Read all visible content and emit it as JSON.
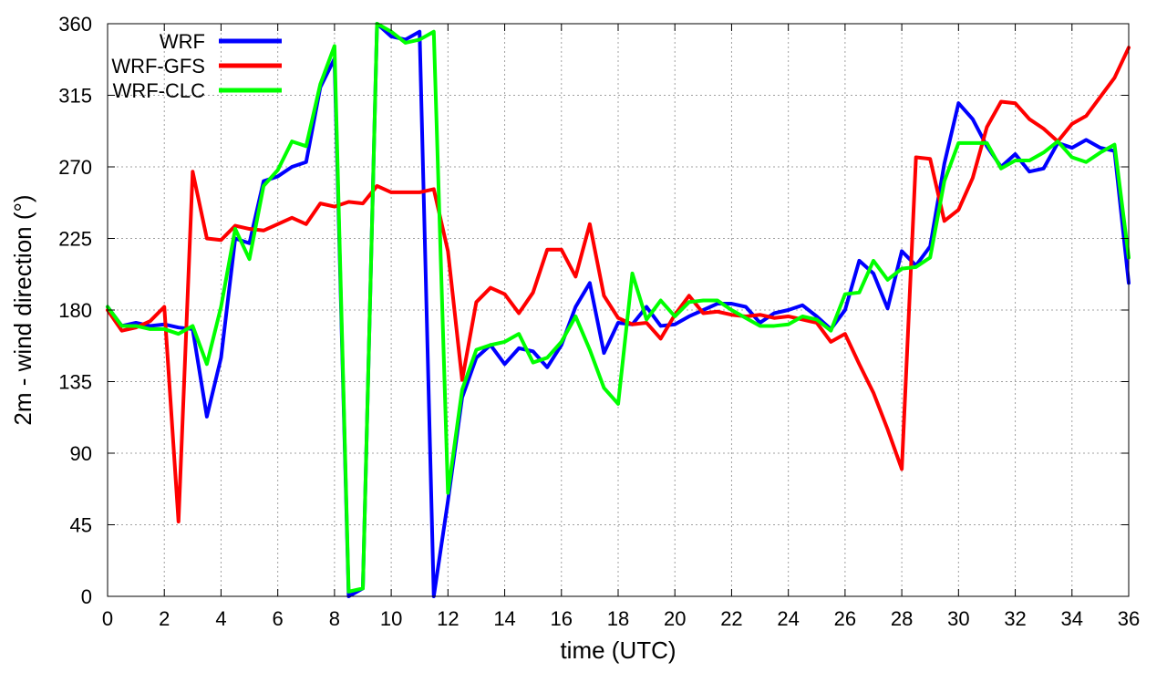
{
  "chart_data": {
    "type": "line",
    "xlabel": "time (UTC)",
    "ylabel": "2m - wind direction (°)",
    "xlim": [
      0,
      36
    ],
    "ylim": [
      0,
      360
    ],
    "xticks": [
      "0",
      "2",
      "4",
      "6",
      "8",
      "10",
      "12",
      "14",
      "16",
      "18",
      "20",
      "22",
      "24",
      "26",
      "28",
      "30",
      "32",
      "34",
      "36"
    ],
    "yticks": [
      "0",
      "45",
      "90",
      "135",
      "180",
      "225",
      "270",
      "315",
      "360"
    ],
    "grid": true,
    "legend_position": "top-left",
    "x": [
      0,
      0.5,
      1,
      1.5,
      2,
      2.5,
      3,
      3.5,
      4,
      4.5,
      5,
      5.5,
      6,
      6.5,
      7,
      7.5,
      8,
      8.5,
      9,
      9.5,
      10,
      10.5,
      11,
      11.5,
      12,
      12.5,
      13,
      13.5,
      14,
      14.5,
      15,
      15.5,
      16,
      16.5,
      17,
      17.5,
      18,
      18.5,
      19,
      19.5,
      20,
      20.5,
      21,
      21.5,
      22,
      22.5,
      23,
      23.5,
      24,
      24.5,
      25,
      25.5,
      26,
      26.5,
      27,
      27.5,
      28,
      28.5,
      29,
      29.5,
      30,
      30.5,
      31,
      31.5,
      32,
      32.5,
      33,
      33.5,
      34,
      34.5,
      35,
      35.5,
      36
    ],
    "series": [
      {
        "name": "WRF",
        "color": "#0000ff",
        "values": [
          182,
          170,
          172,
          170,
          171,
          169,
          168,
          113,
          150,
          225,
          222,
          261,
          264,
          270,
          273,
          320,
          338,
          0,
          5,
          360,
          352,
          350,
          355,
          0,
          60,
          125,
          150,
          158,
          146,
          156,
          154,
          144,
          158,
          182,
          197,
          153,
          172,
          171,
          182,
          170,
          171,
          176,
          180,
          184,
          184,
          182,
          172,
          178,
          180,
          183,
          176,
          168,
          180,
          211,
          203,
          181,
          217,
          208,
          220,
          272,
          310,
          300,
          283,
          270,
          278,
          267,
          269,
          285,
          282,
          287,
          282,
          280,
          197
        ]
      },
      {
        "name": "WRF-GFS",
        "color": "#ff0000",
        "values": [
          180,
          167,
          169,
          173,
          182,
          47,
          267,
          225,
          224,
          233,
          231,
          230,
          234,
          238,
          234,
          247,
          245,
          248,
          247,
          258,
          254,
          254,
          254,
          256,
          217,
          136,
          185,
          194,
          190,
          178,
          191,
          218,
          218,
          201,
          234,
          189,
          175,
          171,
          172,
          162,
          177,
          189,
          178,
          179,
          177,
          176,
          177,
          175,
          176,
          174,
          172,
          160,
          165,
          146,
          128,
          105,
          80,
          276,
          275,
          236,
          243,
          263,
          295,
          311,
          310,
          300,
          294,
          286,
          297,
          302,
          314,
          326,
          345
        ]
      },
      {
        "name": "WRF-CLC",
        "color": "#00ff00",
        "values": [
          182,
          170,
          170,
          168,
          168,
          165,
          170,
          146,
          182,
          231,
          212,
          258,
          268,
          286,
          283,
          322,
          346,
          3,
          5,
          360,
          355,
          348,
          350,
          355,
          65,
          130,
          155,
          158,
          160,
          165,
          147,
          150,
          160,
          176,
          155,
          131,
          121,
          203,
          174,
          186,
          176,
          185,
          186,
          186,
          180,
          175,
          170,
          170,
          171,
          176,
          174,
          167,
          190,
          191,
          211,
          199,
          206,
          207,
          213,
          261,
          285,
          285,
          285,
          269,
          274,
          274,
          279,
          286,
          276,
          273,
          279,
          284,
          213
        ]
      }
    ]
  }
}
